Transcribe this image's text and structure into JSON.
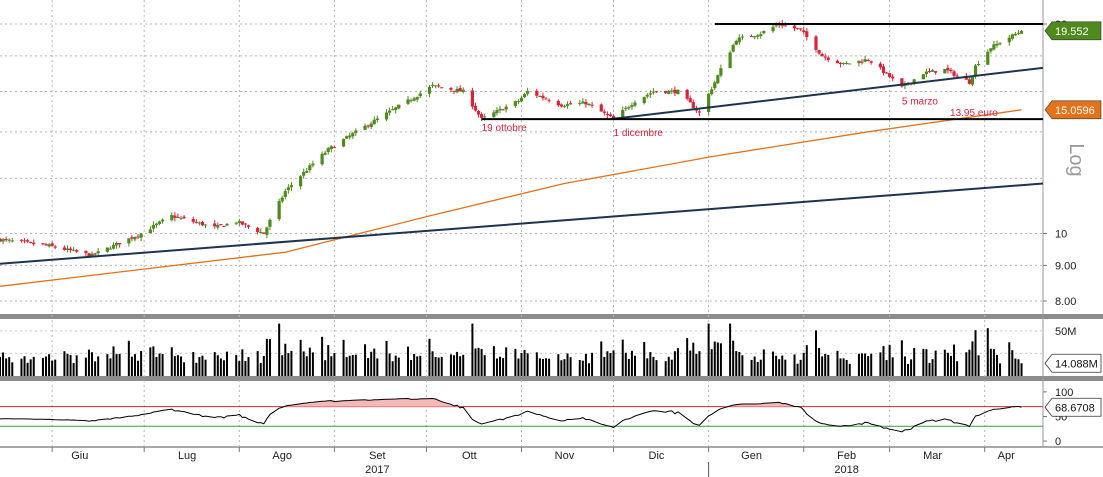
{
  "chart_data": [
    {
      "type": "candlestick",
      "panel": "price",
      "scale": "log",
      "scale_label": "Log",
      "y_ticks": [
        {
          "value": 20,
          "label": "20"
        },
        {
          "value": 10,
          "label": "10"
        },
        {
          "value": 9,
          "label": "9.00"
        },
        {
          "value": 8,
          "label": "8.00"
        }
      ],
      "last_price": {
        "value": 19.552,
        "label": "19.552",
        "color": "#4e8a1c"
      },
      "ma_last": {
        "value": 15.0596,
        "label": "15.0596",
        "color": "#e2731a"
      },
      "colors": {
        "up": "#4e8a1c",
        "down": "#d8233a",
        "ma": "#e2731a",
        "trend": "#1d3450",
        "annotation": "#d8233a"
      },
      "anchors": [
        {
          "date": "2017-05-15",
          "close": 9.8
        },
        {
          "date": "2017-05-31",
          "close": 9.6
        },
        {
          "date": "2017-06-14",
          "close": 9.3
        },
        {
          "date": "2017-06-30",
          "close": 10.0
        },
        {
          "date": "2017-07-10",
          "close": 10.6
        },
        {
          "date": "2017-07-24",
          "close": 10.2
        },
        {
          "date": "2017-07-31",
          "close": 10.4
        },
        {
          "date": "2017-08-09",
          "close": 10.0
        },
        {
          "date": "2017-08-16",
          "close": 11.5
        },
        {
          "date": "2017-08-30",
          "close": 13.2
        },
        {
          "date": "2017-09-15",
          "close": 14.6
        },
        {
          "date": "2017-09-25",
          "close": 15.5
        },
        {
          "date": "2017-10-03",
          "close": 16.3
        },
        {
          "date": "2017-10-13",
          "close": 16.0
        },
        {
          "date": "2017-10-19",
          "close": 14.6
        },
        {
          "date": "2017-10-31",
          "close": 15.5
        },
        {
          "date": "2017-11-03",
          "close": 16.0
        },
        {
          "date": "2017-11-14",
          "close": 15.3
        },
        {
          "date": "2017-11-22",
          "close": 15.4
        },
        {
          "date": "2017-12-01",
          "close": 14.6
        },
        {
          "date": "2017-12-08",
          "close": 15.5
        },
        {
          "date": "2017-12-14",
          "close": 16.0
        },
        {
          "date": "2017-12-22",
          "close": 16.0
        },
        {
          "date": "2017-12-29",
          "close": 14.9
        },
        {
          "date": "2018-01-03",
          "close": 16.5
        },
        {
          "date": "2018-01-10",
          "close": 19.0
        },
        {
          "date": "2018-01-18",
          "close": 19.4
        },
        {
          "date": "2018-01-24",
          "close": 20.0
        },
        {
          "date": "2018-01-31",
          "close": 19.6
        },
        {
          "date": "2018-02-07",
          "close": 18.0
        },
        {
          "date": "2018-02-14",
          "close": 17.5
        },
        {
          "date": "2018-02-22",
          "close": 17.8
        },
        {
          "date": "2018-03-01",
          "close": 16.8
        },
        {
          "date": "2018-03-05",
          "close": 16.2
        },
        {
          "date": "2018-03-12",
          "close": 17.0
        },
        {
          "date": "2018-03-19",
          "close": 17.2
        },
        {
          "date": "2018-03-27",
          "close": 16.5
        },
        {
          "date": "2018-03-29",
          "close": 17.4
        },
        {
          "date": "2018-04-03",
          "close": 18.5
        },
        {
          "date": "2018-04-13",
          "close": 19.552
        }
      ],
      "moving_average": [
        {
          "date": "2017-05-15",
          "value": 8.4
        },
        {
          "date": "2017-08-16",
          "value": 9.4
        },
        {
          "date": "2017-10-02",
          "value": 10.6
        },
        {
          "date": "2017-11-15",
          "value": 11.8
        },
        {
          "date": "2018-01-02",
          "value": 12.9
        },
        {
          "date": "2018-02-22",
          "value": 14.0
        },
        {
          "date": "2018-04-13",
          "value": 15.0596
        }
      ],
      "trendlines": [
        {
          "from": {
            "date": "2017-05-15",
            "value": 9.05
          },
          "to": {
            "date": "2018-04-20",
            "value": 11.8
          }
        },
        {
          "from": {
            "date": "2017-11-30",
            "value": 14.6
          },
          "to": {
            "date": "2018-04-20",
            "value": 17.3
          }
        }
      ],
      "levels": [
        {
          "value": 20.0,
          "from": "2018-01-03",
          "to": "2018-04-20"
        },
        {
          "value": 14.6,
          "from": "2017-10-19",
          "to": "2018-04-20"
        }
      ],
      "annotations": [
        {
          "text": "19 ottobre",
          "date": "2017-10-19"
        },
        {
          "text": "1 dicembre",
          "date": "2017-12-01"
        },
        {
          "text": "5 marzo",
          "date": "2018-03-05"
        },
        {
          "text": "13.95 euro",
          "date": "2018-03-22"
        }
      ]
    },
    {
      "type": "bar",
      "panel": "volume",
      "y_ticks": [
        {
          "value": 50,
          "label": "50M"
        }
      ],
      "last": {
        "value": 14.088,
        "label": "14.088M"
      },
      "ylim": [
        0,
        62
      ],
      "color": "#000000"
    },
    {
      "type": "line",
      "panel": "rsi",
      "ylim": [
        -10,
        120
      ],
      "y_ticks": [
        {
          "value": 100,
          "label": "100"
        },
        {
          "value": 50,
          "label": "50"
        },
        {
          "value": 0,
          "label": "0"
        }
      ],
      "overbought": 70,
      "oversold": 30,
      "last": {
        "value": 68.6708,
        "label": "68.6708"
      },
      "colors": {
        "line": "#000000",
        "fill": "#f7b8b8",
        "overbought": "#d8233a",
        "oversold": "#2ea44f"
      }
    }
  ],
  "x_axis": {
    "start": "2017-05-15",
    "end": "2018-04-20",
    "months": [
      {
        "label": "Giu",
        "date": "2017-06-10"
      },
      {
        "label": "Lug",
        "date": "2017-07-15"
      },
      {
        "label": "Ago",
        "date": "2017-08-15"
      },
      {
        "label": "Set",
        "date": "2017-09-15"
      },
      {
        "label": "Ott",
        "date": "2017-10-15"
      },
      {
        "label": "Nov",
        "date": "2017-11-15"
      },
      {
        "label": "Dic",
        "date": "2017-12-15"
      },
      {
        "label": "Gen",
        "date": "2018-01-15"
      },
      {
        "label": "Feb",
        "date": "2018-02-15"
      },
      {
        "label": "Mar",
        "date": "2018-03-15"
      },
      {
        "label": "Apr",
        "date": "2018-04-08"
      }
    ],
    "years": [
      {
        "label": "2017",
        "date": "2017-09-15"
      },
      {
        "label": "2018",
        "date": "2018-02-15"
      }
    ],
    "year_divider": "2018-01-01",
    "gridlines": [
      "2017-06-01",
      "2017-07-01",
      "2017-08-01",
      "2017-09-01",
      "2017-10-01",
      "2017-11-01",
      "2017-12-01",
      "2018-01-01",
      "2018-02-01",
      "2018-03-01",
      "2018-04-01"
    ]
  }
}
